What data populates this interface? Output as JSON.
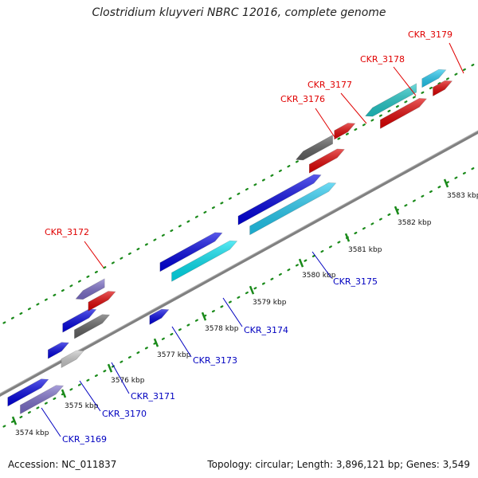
{
  "title": "Clostridium kluyveri NBRC 12016, complete genome",
  "footer": {
    "accession": "Accession: NC_011837",
    "stats": "Topology: circular; Length: 3,896,121 bp; Genes: 3,549"
  },
  "colors": {
    "backbone": "#808080",
    "dots": "#1a8a1a",
    "forward_label": "#e00000",
    "reverse_label": "#0000c0"
  },
  "ticks": [
    {
      "label": "3574 kbp"
    },
    {
      "label": "3575 kbp"
    },
    {
      "label": "3576 kbp"
    },
    {
      "label": "3577 kbp"
    },
    {
      "label": "3578 kbp"
    },
    {
      "label": "3579 kbp"
    },
    {
      "label": "3580 kbp"
    },
    {
      "label": "3581 kbp"
    },
    {
      "label": "3582 kbp"
    },
    {
      "label": "3583 kbp"
    }
  ],
  "labels": [
    {
      "text": "CKR_3169",
      "strand": "reverse"
    },
    {
      "text": "CKR_3170",
      "strand": "reverse"
    },
    {
      "text": "CKR_3171",
      "strand": "reverse"
    },
    {
      "text": "CKR_3172",
      "strand": "forward"
    },
    {
      "text": "CKR_3173",
      "strand": "reverse"
    },
    {
      "text": "CKR_3174",
      "strand": "reverse"
    },
    {
      "text": "CKR_3175",
      "strand": "reverse"
    },
    {
      "text": "CKR_3176",
      "strand": "forward"
    },
    {
      "text": "CKR_3177",
      "strand": "forward"
    },
    {
      "text": "CKR_3178",
      "strand": "forward"
    },
    {
      "text": "CKR_3179",
      "strand": "forward"
    }
  ],
  "genes": [
    {
      "color": "#0000e0"
    },
    {
      "color": "#7a6cc8"
    },
    {
      "color": "#0000e0"
    },
    {
      "color": "#c8c8c8"
    },
    {
      "color": "#0000e0"
    },
    {
      "color": "#606060"
    },
    {
      "color": "#7a6cc8"
    },
    {
      "color": "#e00000"
    },
    {
      "color": "#0000e0"
    },
    {
      "color": "#0000e0"
    },
    {
      "color": "#00e0f0"
    },
    {
      "color": "#0000e0"
    },
    {
      "color": "#20c8f0"
    },
    {
      "color": "#606060"
    },
    {
      "color": "#e00000"
    },
    {
      "color": "#e00000"
    },
    {
      "color": "#20c8c8"
    },
    {
      "color": "#e00000"
    },
    {
      "color": "#20c8f0"
    },
    {
      "color": "#e00000"
    }
  ]
}
